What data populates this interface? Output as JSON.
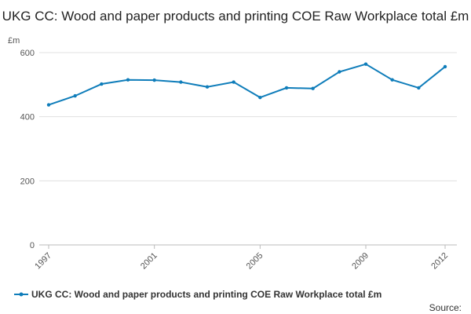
{
  "chart_data": {
    "type": "line",
    "title": "UKG CC: Wood and paper products and printing COE Raw Workplace total £m",
    "y_label": "£m",
    "source": "Source:",
    "x": [
      1997,
      1998,
      1999,
      2000,
      2001,
      2002,
      2003,
      2004,
      2005,
      2006,
      2007,
      2008,
      2009,
      2010,
      2011,
      2012
    ],
    "series": [
      {
        "name": "UKG CC: Wood and paper products and printing COE Raw Workplace total £m",
        "color": "#0f7dba",
        "values": [
          437,
          465,
          502,
          515,
          514,
          508,
          493,
          508,
          460,
          490,
          488,
          540,
          564,
          515,
          490,
          556
        ]
      }
    ],
    "xlim": [
      1997,
      2012
    ],
    "xticks": [
      1997,
      2001,
      2005,
      2009,
      2012
    ],
    "ylim": [
      0,
      600
    ],
    "yticks": [
      0,
      200,
      400,
      600
    ],
    "grid": true,
    "legend": "bottom"
  }
}
